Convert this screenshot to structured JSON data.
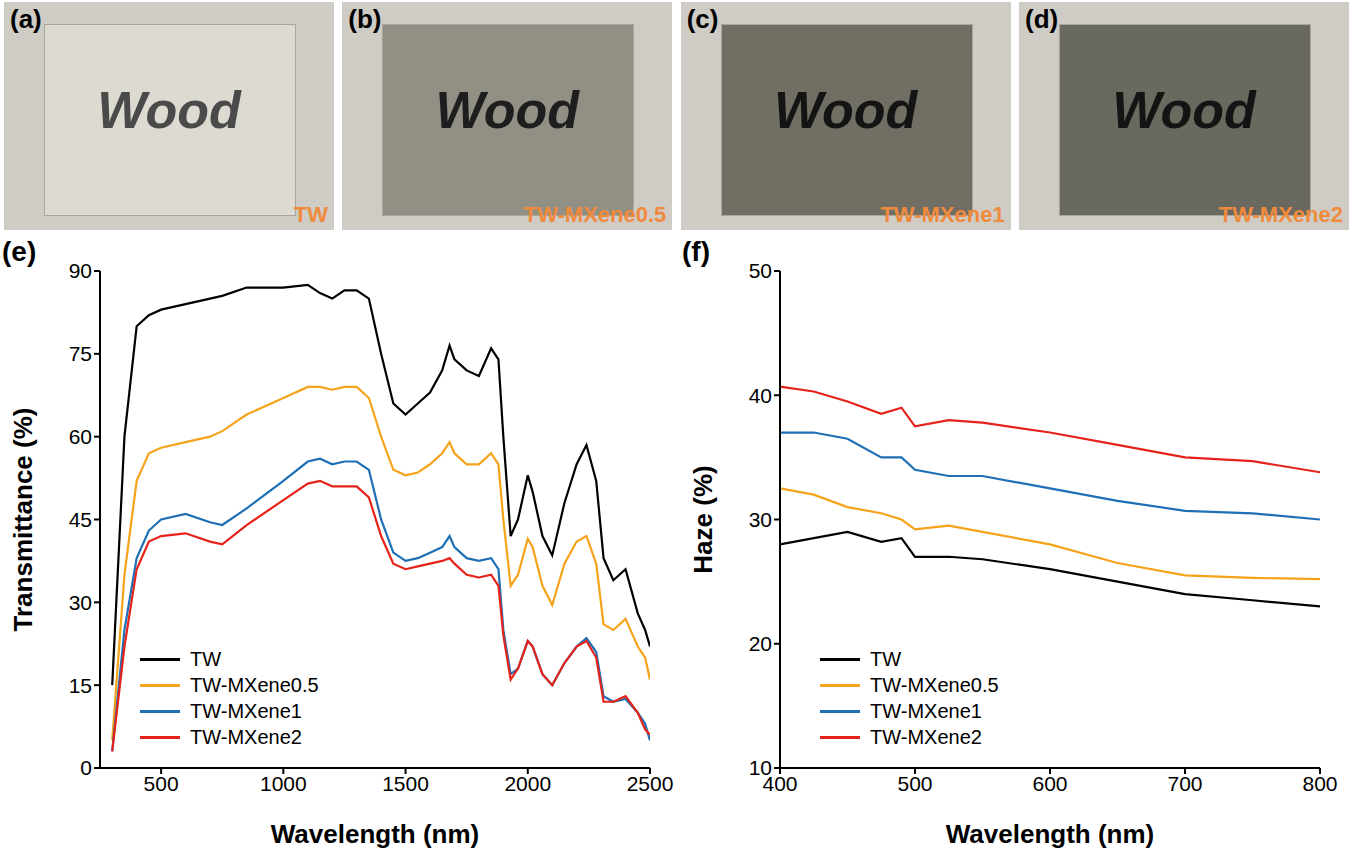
{
  "photos": [
    {
      "panel": "(a)",
      "text": "Wood",
      "caption": "TW"
    },
    {
      "panel": "(b)",
      "text": "Wood",
      "caption": "TW-MXene0.5"
    },
    {
      "panel": "(c)",
      "text": "Wood",
      "caption": "TW-MXene1"
    },
    {
      "panel": "(d)",
      "text": "Wood",
      "caption": "TW-MXene2"
    }
  ],
  "chart_data": [
    {
      "type": "line",
      "panel": "(e)",
      "x_label": "Wavelength (nm)",
      "y_label": "Transmittance (%)",
      "x": [
        300,
        350,
        400,
        450,
        500,
        600,
        700,
        750,
        850,
        1000,
        1100,
        1150,
        1200,
        1250,
        1300,
        1350,
        1400,
        1450,
        1500,
        1550,
        1600,
        1650,
        1680,
        1700,
        1750,
        1800,
        1850,
        1880,
        1900,
        1930,
        1960,
        2000,
        2020,
        2060,
        2100,
        2150,
        2200,
        2240,
        2280,
        2310,
        2350,
        2400,
        2450,
        2480,
        2500
      ],
      "xlim": [
        250,
        2500
      ],
      "xticks": [
        500,
        1000,
        1500,
        2000,
        2500
      ],
      "ylim": [
        0,
        90
      ],
      "yticks": [
        0,
        15,
        30,
        45,
        60,
        75,
        90
      ],
      "grid": false,
      "legend": "lower left",
      "series": [
        {
          "name": "TW",
          "color": "#000000",
          "values": [
            15,
            60,
            80,
            82,
            83,
            84,
            85,
            85.5,
            87,
            87,
            87.5,
            86,
            85,
            86.5,
            86.5,
            85,
            75,
            66,
            64,
            66,
            68,
            72,
            76.5,
            74,
            72,
            71,
            76,
            74,
            60,
            42,
            45,
            53,
            50,
            42,
            38.5,
            48,
            55,
            58.5,
            52,
            38,
            34,
            36,
            28,
            25,
            22
          ]
        },
        {
          "name": "TW-MXene0.5",
          "color": "#f5a31a",
          "values": [
            5,
            35,
            52,
            57,
            58,
            59,
            60,
            61,
            64,
            67,
            69,
            69,
            68.5,
            69,
            69,
            67,
            60,
            54,
            53,
            53.5,
            55,
            57,
            59,
            57,
            55,
            55,
            57,
            55,
            45,
            33,
            35,
            41.5,
            40,
            33,
            29.5,
            37,
            41,
            42,
            37,
            26,
            25,
            27,
            22,
            20,
            16
          ]
        },
        {
          "name": "TW-MXene1",
          "color": "#1f6fb5",
          "values": [
            3,
            25,
            38,
            43,
            45,
            46,
            44.5,
            44,
            47,
            52,
            55.5,
            56,
            55,
            55.5,
            55.5,
            54,
            45,
            39,
            37.5,
            38,
            39,
            40,
            42,
            40,
            38,
            37.5,
            38,
            36,
            25,
            17,
            18,
            23,
            22,
            17,
            15,
            19,
            22,
            23.5,
            21,
            13,
            12,
            12.5,
            10,
            8,
            5
          ]
        },
        {
          "name": "TW-MXene2",
          "color": "#e5231b",
          "values": [
            3,
            22,
            36,
            41,
            42,
            42.5,
            41,
            40.5,
            44,
            48.5,
            51.5,
            52,
            51,
            51,
            51,
            49,
            42,
            37,
            36,
            36.5,
            37,
            37.5,
            38,
            37,
            35,
            34.5,
            35,
            33,
            24,
            16,
            18,
            23,
            22,
            17,
            15,
            19,
            22,
            23,
            20,
            12,
            12,
            13,
            10,
            7,
            6
          ]
        }
      ]
    },
    {
      "type": "line",
      "panel": "(f)",
      "x_label": "Wavelength (nm)",
      "y_label": "Haze (%)",
      "x": [
        400,
        425,
        450,
        475,
        490,
        500,
        525,
        550,
        600,
        650,
        700,
        750,
        800
      ],
      "xlim": [
        400,
        800
      ],
      "xticks": [
        400,
        500,
        600,
        700,
        800
      ],
      "ylim": [
        10,
        50
      ],
      "yticks": [
        10,
        20,
        30,
        40,
        50
      ],
      "grid": false,
      "legend": "lower left",
      "series": [
        {
          "name": "TW",
          "color": "#000000",
          "values": [
            28,
            28.5,
            29,
            28.2,
            28.5,
            27,
            27,
            26.8,
            26,
            25,
            24,
            23.5,
            23
          ]
        },
        {
          "name": "TW-MXene0.5",
          "color": "#f5a31a",
          "values": [
            32.5,
            32,
            31,
            30.5,
            30,
            29.2,
            29.5,
            29,
            28,
            26.5,
            25.5,
            25.3,
            25.2
          ]
        },
        {
          "name": "TW-MXene1",
          "color": "#1f6fb5",
          "values": [
            37,
            37,
            36.5,
            35,
            35,
            34,
            33.5,
            33.5,
            32.5,
            31.5,
            30.7,
            30.5,
            30
          ]
        },
        {
          "name": "TW-MXene2",
          "color": "#e5231b",
          "values": [
            40.7,
            40.3,
            39.5,
            38.5,
            39,
            37.5,
            38,
            37.8,
            37,
            36,
            35,
            34.7,
            33.8
          ]
        }
      ]
    }
  ]
}
